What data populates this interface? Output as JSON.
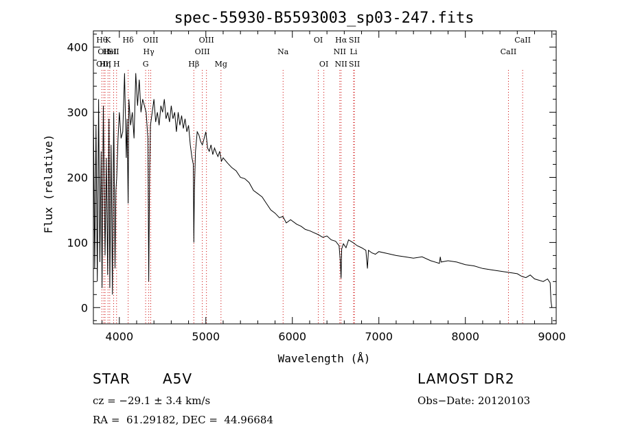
{
  "chart_data": {
    "type": "line",
    "title": "spec-55930-B5593003_sp03-247.fits",
    "xlabel": "Wavelength (Å)",
    "ylabel": "Flux (relative)",
    "xlim": [
      3700,
      9050
    ],
    "ylim": [
      -25,
      425
    ],
    "x_ticks": [
      4000,
      5000,
      6000,
      7000,
      8000,
      9000
    ],
    "y_ticks": [
      0,
      100,
      200,
      300,
      400
    ],
    "grid": false,
    "line_color": "#000000",
    "marker_color": "#cc0000",
    "series": [
      {
        "x": [
          3700,
          3715,
          3730,
          3745,
          3760,
          3775,
          3790,
          3800,
          3815,
          3835,
          3850,
          3865,
          3880,
          3890,
          3905,
          3920,
          3935,
          3950,
          3960,
          3970,
          3985,
          4000,
          4020,
          4040,
          4060,
          4080,
          4090,
          4102,
          4110,
          4130,
          4150,
          4170,
          4190,
          4210,
          4230,
          4250,
          4270,
          4290,
          4310,
          4330,
          4340,
          4350,
          4360,
          4380,
          4400,
          4420,
          4440,
          4460,
          4480,
          4500,
          4520,
          4540,
          4560,
          4580,
          4600,
          4620,
          4640,
          4660,
          4680,
          4700,
          4720,
          4740,
          4760,
          4780,
          4800,
          4820,
          4840,
          4855,
          4861,
          4868,
          4880,
          4900,
          4920,
          4940,
          4960,
          4980,
          5000,
          5020,
          5040,
          5060,
          5080,
          5100,
          5120,
          5140,
          5160,
          5180,
          5200,
          5250,
          5300,
          5350,
          5400,
          5450,
          5500,
          5550,
          5600,
          5650,
          5700,
          5750,
          5800,
          5850,
          5890,
          5930,
          5980,
          6050,
          6100,
          6150,
          6200,
          6250,
          6300,
          6350,
          6400,
          6450,
          6500,
          6540,
          6555,
          6563,
          6570,
          6590,
          6620,
          6650,
          6700,
          6750,
          6800,
          6850,
          6868,
          6880,
          6920,
          6960,
          7000,
          7100,
          7200,
          7300,
          7400,
          7500,
          7600,
          7700,
          7710,
          7720,
          7800,
          7900,
          8000,
          8100,
          8200,
          8300,
          8400,
          8500,
          8600,
          8650,
          8700,
          8750,
          8800,
          8850,
          8900,
          8950,
          8980,
          8990,
          9000
        ],
        "y": [
          310,
          60,
          280,
          40,
          320,
          70,
          240,
          30,
          310,
          80,
          230,
          50,
          290,
          30,
          250,
          20,
          300,
          60,
          180,
          200,
          260,
          300,
          260,
          270,
          360,
          230,
          290,
          160,
          320,
          280,
          300,
          260,
          360,
          310,
          350,
          300,
          320,
          310,
          300,
          260,
          40,
          210,
          280,
          300,
          320,
          285,
          300,
          280,
          310,
          300,
          320,
          290,
          300,
          285,
          310,
          290,
          300,
          270,
          300,
          280,
          295,
          275,
          290,
          270,
          280,
          250,
          230,
          220,
          100,
          180,
          240,
          270,
          265,
          255,
          250,
          260,
          270,
          245,
          240,
          250,
          235,
          245,
          238,
          232,
          240,
          225,
          230,
          222,
          215,
          210,
          200,
          198,
          192,
          180,
          175,
          170,
          160,
          150,
          145,
          138,
          140,
          130,
          135,
          128,
          125,
          120,
          118,
          115,
          112,
          108,
          110,
          104,
          102,
          95,
          70,
          45,
          90,
          98,
          92,
          104,
          100,
          95,
          92,
          88,
          60,
          88,
          84,
          82,
          86,
          83,
          80,
          78,
          76,
          78,
          72,
          68,
          78,
          70,
          72,
          70,
          66,
          64,
          60,
          58,
          56,
          54,
          52,
          48,
          46,
          50,
          44,
          42,
          40,
          44,
          38,
          10,
          0
        ]
      }
    ],
    "line_markers": [
      {
        "wavelength": 3798,
        "labels": [
          {
            "text": "Hθ",
            "row": 0
          }
        ]
      },
      {
        "wavelength": 3820,
        "labels": [
          {
            "text": "OII",
            "row": 1
          },
          {
            "text": "OIII",
            "row": 2
          }
        ]
      },
      {
        "wavelength": 3835,
        "labels": [
          {
            "text": "Hη",
            "row": 2
          }
        ]
      },
      {
        "wavelength": 3869,
        "labels": [
          {
            "text": "K",
            "row": 0
          }
        ]
      },
      {
        "wavelength": 3889,
        "labels": [
          {
            "text": "HeI",
            "row": 1
          }
        ]
      },
      {
        "wavelength": 3934,
        "labels": [
          {
            "text": "SII",
            "row": 1
          }
        ]
      },
      {
        "wavelength": 3968,
        "labels": [
          {
            "text": "H",
            "row": 2
          }
        ]
      },
      {
        "wavelength": 4102,
        "labels": [
          {
            "text": "Hδ",
            "row": 0
          }
        ]
      },
      {
        "wavelength": 4304,
        "labels": [
          {
            "text": "G",
            "row": 2
          }
        ]
      },
      {
        "wavelength": 4340,
        "labels": [
          {
            "text": "Hγ",
            "row": 1
          }
        ]
      },
      {
        "wavelength": 4363,
        "labels": [
          {
            "text": "OIII",
            "row": 0
          }
        ]
      },
      {
        "wavelength": 4861,
        "labels": [
          {
            "text": "Hβ",
            "row": 2
          }
        ]
      },
      {
        "wavelength": 4959,
        "labels": [
          {
            "text": "OIII",
            "row": 1
          }
        ]
      },
      {
        "wavelength": 5007,
        "labels": [
          {
            "text": "OIII",
            "row": 0
          }
        ]
      },
      {
        "wavelength": 5175,
        "labels": [
          {
            "text": "Mg",
            "row": 2
          }
        ]
      },
      {
        "wavelength": 5893,
        "labels": [
          {
            "text": "Na",
            "row": 1
          }
        ]
      },
      {
        "wavelength": 6300,
        "labels": [
          {
            "text": "OI",
            "row": 0
          }
        ]
      },
      {
        "wavelength": 6364,
        "labels": [
          {
            "text": "OI",
            "row": 2
          }
        ]
      },
      {
        "wavelength": 6548,
        "labels": [
          {
            "text": "NII",
            "row": 1
          }
        ]
      },
      {
        "wavelength": 6563,
        "labels": [
          {
            "text": "Hα",
            "row": 0
          },
          {
            "text": "NII",
            "row": 2
          }
        ]
      },
      {
        "wavelength": 6708,
        "labels": [
          {
            "text": "Li",
            "row": 1
          }
        ]
      },
      {
        "wavelength": 6717,
        "labels": [
          {
            "text": "SII",
            "row": 0
          },
          {
            "text": "SII",
            "row": 2
          }
        ]
      },
      {
        "wavelength": 8498,
        "labels": [
          {
            "text": "CaII",
            "row": 1
          }
        ]
      },
      {
        "wavelength": 8662,
        "labels": [
          {
            "text": "CaII",
            "row": 0
          }
        ]
      }
    ]
  },
  "info": {
    "class": "STAR",
    "subclass": "A5V",
    "survey": "LAMOST DR2",
    "cz": "cz = −29.1 ± 3.4 km/s",
    "obs_date": "Obs−Date: 20120103",
    "coords": "RA =  61.29182, DEC =  44.96684"
  }
}
